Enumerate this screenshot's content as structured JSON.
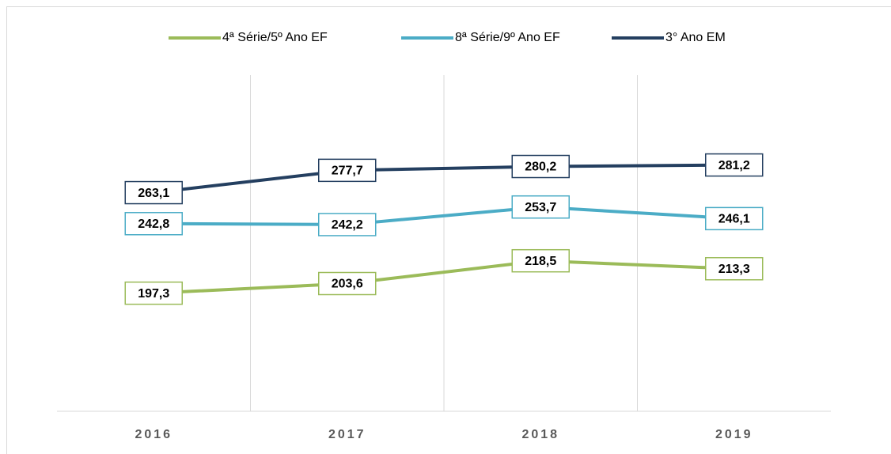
{
  "chart_data": {
    "type": "line",
    "categories": [
      "2016",
      "2017",
      "2018",
      "2019"
    ],
    "series": [
      {
        "name": "4ª Série/5º Ano EF",
        "color": "#9bbb59",
        "values": [
          197.3,
          203.6,
          218.5,
          213.3
        ],
        "value_labels": [
          "197,3",
          "203,6",
          "218,5",
          "213,3"
        ]
      },
      {
        "name": "8ª Série/9º Ano EF",
        "color": "#4bacc6",
        "values": [
          242.8,
          242.2,
          253.7,
          246.1
        ],
        "value_labels": [
          "242,8",
          "242,2",
          "253,7",
          "246,1"
        ]
      },
      {
        "name": "3° Ano EM",
        "color": "#243f60",
        "values": [
          263.1,
          277.7,
          280.2,
          281.2
        ],
        "value_labels": [
          "263,1",
          "277,7",
          "280,2",
          "281,2"
        ]
      }
    ],
    "ylim": [
      120,
      340
    ],
    "grid": true,
    "legend": "top"
  }
}
